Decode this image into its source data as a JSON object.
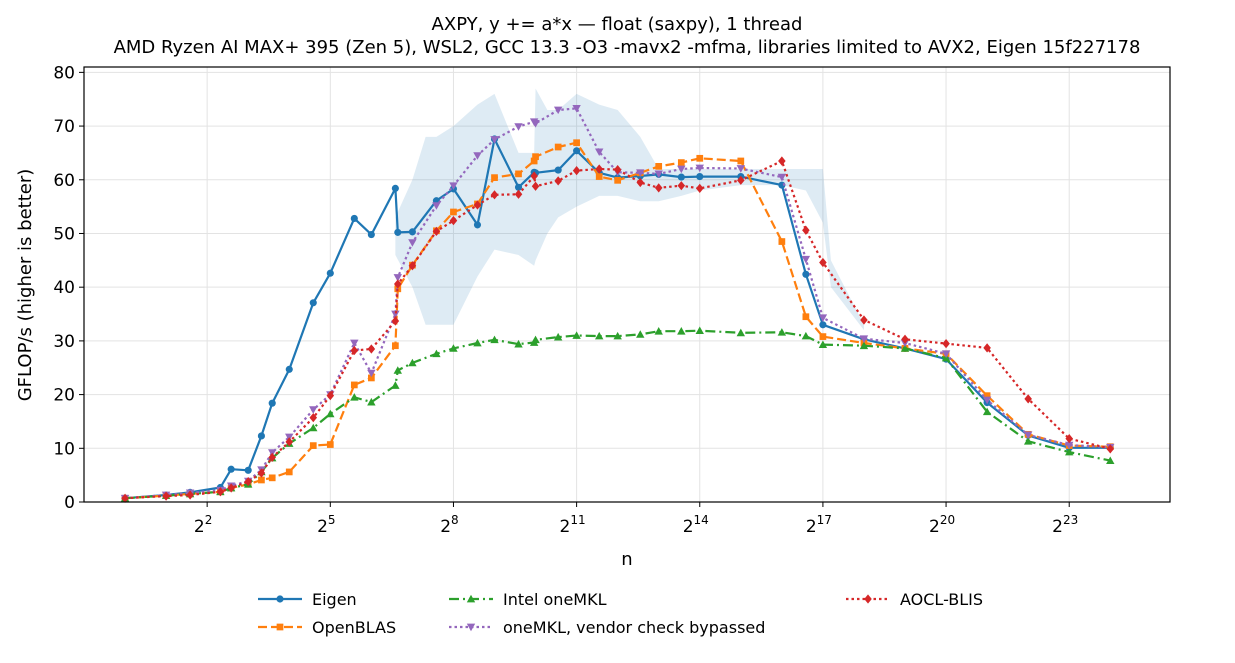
{
  "chart_data": {
    "type": "line",
    "title": "AXPY, y += a*x — float (saxpy), 1 thread",
    "subtitle": "AMD Ryzen AI MAX+ 395 (Zen 5), WSL2, GCC 13.3 -O3 -mavx2 -mfma, libraries limited to AVX2, Eigen 15f227178",
    "xlabel": "n",
    "ylabel": "GFLOP/s (higher is better)",
    "x_scale": "log2",
    "xlim": [
      0.5,
      46000000
    ],
    "ylim": [
      0,
      81
    ],
    "x_ticks": [
      {
        "value": 4,
        "base": "2",
        "exp": "2"
      },
      {
        "value": 32,
        "base": "2",
        "exp": "5"
      },
      {
        "value": 256,
        "base": "2",
        "exp": "8"
      },
      {
        "value": 2048,
        "base": "2",
        "exp": "11"
      },
      {
        "value": 16384,
        "base": "2",
        "exp": "14"
      },
      {
        "value": 131072,
        "base": "2",
        "exp": "17"
      },
      {
        "value": 1048576,
        "base": "2",
        "exp": "20"
      },
      {
        "value": 8388608,
        "base": "2",
        "exp": "23"
      }
    ],
    "y_ticks": [
      0,
      10,
      20,
      30,
      40,
      50,
      60,
      70,
      80
    ],
    "grid": true,
    "legend_position": "bottom-center",
    "band": {
      "series": "Eigen",
      "color": "#1f77b4",
      "opacity": 0.15,
      "x": [
        96,
        128,
        160,
        192,
        256,
        384,
        512,
        768,
        1000,
        1024,
        1250,
        1500,
        2048,
        3000,
        4096,
        6000,
        8192,
        12000,
        16384,
        32768,
        65536,
        98304,
        131072,
        150000,
        262144
      ],
      "y_low": [
        46,
        40,
        33,
        33,
        33,
        42,
        47,
        46,
        44,
        45,
        50,
        53,
        55,
        57,
        57,
        56,
        56,
        57,
        58,
        59,
        59,
        58,
        52,
        40,
        32
      ],
      "y_high": [
        53,
        60,
        68,
        68,
        70,
        74,
        76,
        65,
        65,
        77,
        73,
        73,
        76,
        74,
        73,
        68,
        62,
        62,
        62,
        62,
        62,
        62,
        62,
        45,
        33
      ]
    },
    "series": [
      {
        "name": "Eigen",
        "color": "#1f77b4",
        "dash": "solid",
        "marker": "circle",
        "x": [
          1,
          2,
          3,
          5,
          6,
          8,
          10,
          12,
          16,
          24,
          32,
          48,
          64,
          96,
          100,
          128,
          192,
          256,
          384,
          512,
          768,
          1000,
          1024,
          1500,
          2048,
          3000,
          4096,
          6000,
          8192,
          12000,
          16384,
          32768,
          65536,
          98304,
          131072,
          262144,
          524288,
          1048576,
          2097152,
          4194304,
          8388608,
          16777216
        ],
        "y": [
          0.7,
          1.3,
          1.8,
          2.7,
          6.1,
          5.9,
          12.3,
          18.4,
          24.7,
          37.1,
          42.6,
          52.8,
          49.8,
          58.4,
          50.2,
          50.3,
          56.1,
          58.3,
          51.6,
          67.6,
          58.6,
          61.4,
          61.3,
          61.8,
          65.4,
          61.3,
          60.4,
          60.7,
          61.0,
          60.5,
          60.6,
          60.6,
          59.0,
          42.4,
          33.0,
          30.3,
          28.6,
          26.6,
          18.5,
          12.4,
          10.1,
          10.1
        ]
      },
      {
        "name": "OpenBLAS",
        "color": "#ff7f0e",
        "dash": "dashed",
        "marker": "square",
        "x": [
          1,
          2,
          3,
          5,
          6,
          8,
          10,
          12,
          16,
          24,
          32,
          48,
          64,
          96,
          100,
          128,
          192,
          256,
          384,
          512,
          768,
          1000,
          1024,
          1500,
          2048,
          3000,
          4096,
          6000,
          8192,
          12000,
          16384,
          32768,
          65536,
          98304,
          131072,
          262144,
          524288,
          1048576,
          2097152,
          4194304,
          8388608,
          16777216
        ],
        "y": [
          0.7,
          1.2,
          1.5,
          1.9,
          2.6,
          3.3,
          4.1,
          4.5,
          5.6,
          10.5,
          10.7,
          21.8,
          23.1,
          29.1,
          39.7,
          44.1,
          50.5,
          54.0,
          55.5,
          60.4,
          61.1,
          63.5,
          64.3,
          66.1,
          66.9,
          60.6,
          59.9,
          61.3,
          62.5,
          63.2,
          64.0,
          63.5,
          48.5,
          34.5,
          30.8,
          29.6,
          28.6,
          27.6,
          19.8,
          12.6,
          10.5,
          10.3
        ]
      },
      {
        "name": "Intel oneMKL",
        "color": "#2ca02c",
        "dash": "dashdot",
        "marker": "triangle-up",
        "x": [
          1,
          2,
          3,
          5,
          6,
          8,
          10,
          12,
          16,
          24,
          32,
          48,
          64,
          96,
          100,
          128,
          192,
          256,
          384,
          512,
          768,
          1000,
          1024,
          1500,
          2048,
          3000,
          4096,
          6000,
          8192,
          12000,
          16384,
          32768,
          65536,
          98304,
          131072,
          262144,
          524288,
          1048576,
          2097152,
          4194304,
          8388608,
          16777216
        ],
        "y": [
          0.7,
          1.2,
          1.5,
          1.9,
          2.6,
          3.3,
          5.6,
          8.2,
          10.9,
          13.8,
          16.4,
          19.5,
          18.6,
          21.7,
          24.5,
          25.9,
          27.6,
          28.6,
          29.6,
          30.2,
          29.4,
          29.7,
          30.2,
          30.7,
          31.0,
          30.9,
          30.9,
          31.2,
          31.8,
          31.8,
          31.9,
          31.5,
          31.6,
          30.9,
          29.3,
          29.1,
          28.6,
          26.8,
          16.8,
          11.3,
          9.3,
          7.7
        ]
      },
      {
        "name": "oneMKL, vendor check bypassed",
        "color": "#9467bd",
        "dash": "dotted",
        "marker": "triangle-down",
        "x": [
          1,
          2,
          3,
          5,
          6,
          8,
          10,
          12,
          16,
          24,
          32,
          48,
          64,
          96,
          100,
          128,
          192,
          256,
          384,
          512,
          768,
          1000,
          1024,
          1500,
          2048,
          3000,
          4096,
          6000,
          8192,
          12000,
          16384,
          32768,
          65536,
          98304,
          131072,
          262144,
          524288,
          1048576,
          2097152,
          4194304,
          8388608,
          16777216
        ],
        "y": [
          0.7,
          1.3,
          1.7,
          2.2,
          3.0,
          3.9,
          6.0,
          9.2,
          12.1,
          17.2,
          20.0,
          29.6,
          24.0,
          35.0,
          41.8,
          48.3,
          55.2,
          58.9,
          64.5,
          67.5,
          69.9,
          70.8,
          70.5,
          73.0,
          73.3,
          65.2,
          61.4,
          61.3,
          61.1,
          62.0,
          62.2,
          62.1,
          60.5,
          45.2,
          34.3,
          30.4,
          29.6,
          27.6,
          19.0,
          12.5,
          10.6,
          10.2
        ]
      },
      {
        "name": "AOCL-BLIS",
        "color": "#d62728",
        "dash": "dotted",
        "marker": "diamond",
        "x": [
          1,
          2,
          3,
          5,
          6,
          8,
          10,
          12,
          16,
          24,
          32,
          48,
          64,
          96,
          100,
          128,
          192,
          256,
          384,
          512,
          768,
          1000,
          1024,
          1500,
          2048,
          3000,
          4096,
          6000,
          8192,
          12000,
          16384,
          32768,
          65536,
          98304,
          131072,
          262144,
          524288,
          1048576,
          2097152,
          4194304,
          8388608,
          16777216
        ],
        "y": [
          0.7,
          1.1,
          1.3,
          1.9,
          2.6,
          3.8,
          5.4,
          8.3,
          11.2,
          15.7,
          19.8,
          28.2,
          28.5,
          33.7,
          40.6,
          44.0,
          50.4,
          52.4,
          55.3,
          57.2,
          57.3,
          60.7,
          58.8,
          59.8,
          61.7,
          62.0,
          61.9,
          59.5,
          58.5,
          58.9,
          58.4,
          59.9,
          63.5,
          50.6,
          44.6,
          33.9,
          30.3,
          29.5,
          28.7,
          19.2,
          11.8,
          9.9
        ]
      }
    ]
  }
}
